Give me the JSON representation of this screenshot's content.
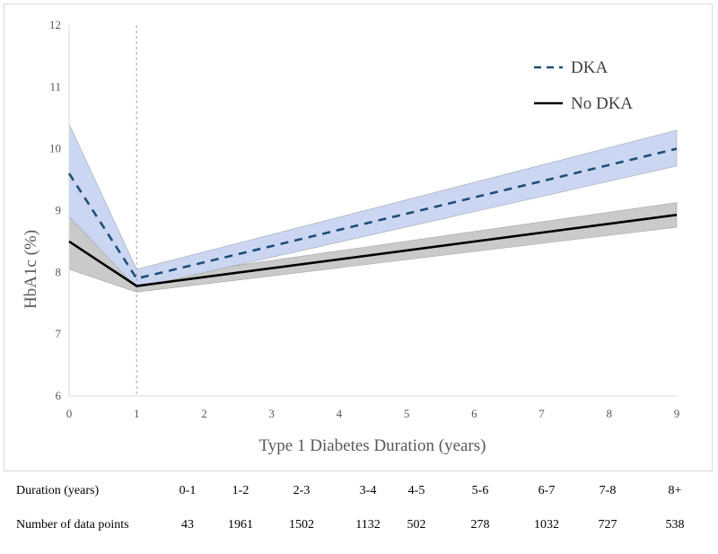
{
  "chart_data": {
    "type": "line",
    "title": "",
    "xlabel": "Type 1 Diabetes Duration (years)",
    "ylabel": "HbA1c (%)",
    "xlim": [
      0,
      9
    ],
    "ylim": [
      6,
      12
    ],
    "x_ticks": [
      "0",
      "1",
      "2",
      "3",
      "4",
      "5",
      "6",
      "7",
      "8",
      "9"
    ],
    "y_ticks": [
      "6",
      "7",
      "8",
      "9",
      "10",
      "11",
      "12"
    ],
    "grid": false,
    "reference_line": {
      "x": 1,
      "style": "dashed"
    },
    "legend": {
      "position": "top-right"
    },
    "series": [
      {
        "name": "DKA",
        "style": "dashed",
        "color": "#1f4e79",
        "band_color": "#c9d5f2",
        "x": [
          0,
          1,
          9
        ],
        "values": [
          9.6,
          7.9,
          10.0
        ],
        "ci_lower": [
          8.9,
          7.75,
          9.72
        ],
        "ci_upper": [
          10.4,
          8.05,
          10.3
        ]
      },
      {
        "name": "No DKA",
        "style": "solid",
        "color": "#000000",
        "band_color": "#c8c8c8",
        "x": [
          0,
          1,
          9
        ],
        "values": [
          8.5,
          7.78,
          8.93
        ],
        "ci_lower": [
          8.05,
          7.68,
          8.73
        ],
        "ci_upper": [
          8.95,
          7.88,
          9.13
        ]
      }
    ]
  },
  "table": {
    "header_label": "Duration (years)",
    "row_label": "Number of data points",
    "durations": [
      "0-1",
      "1-2",
      "2-3",
      "3-4",
      "4-5",
      "5-6",
      "6-7",
      "7-8",
      "8+"
    ],
    "counts": [
      "43",
      "1961",
      "1502",
      "1132",
      "502",
      "278",
      "1032",
      "727",
      "538"
    ]
  }
}
